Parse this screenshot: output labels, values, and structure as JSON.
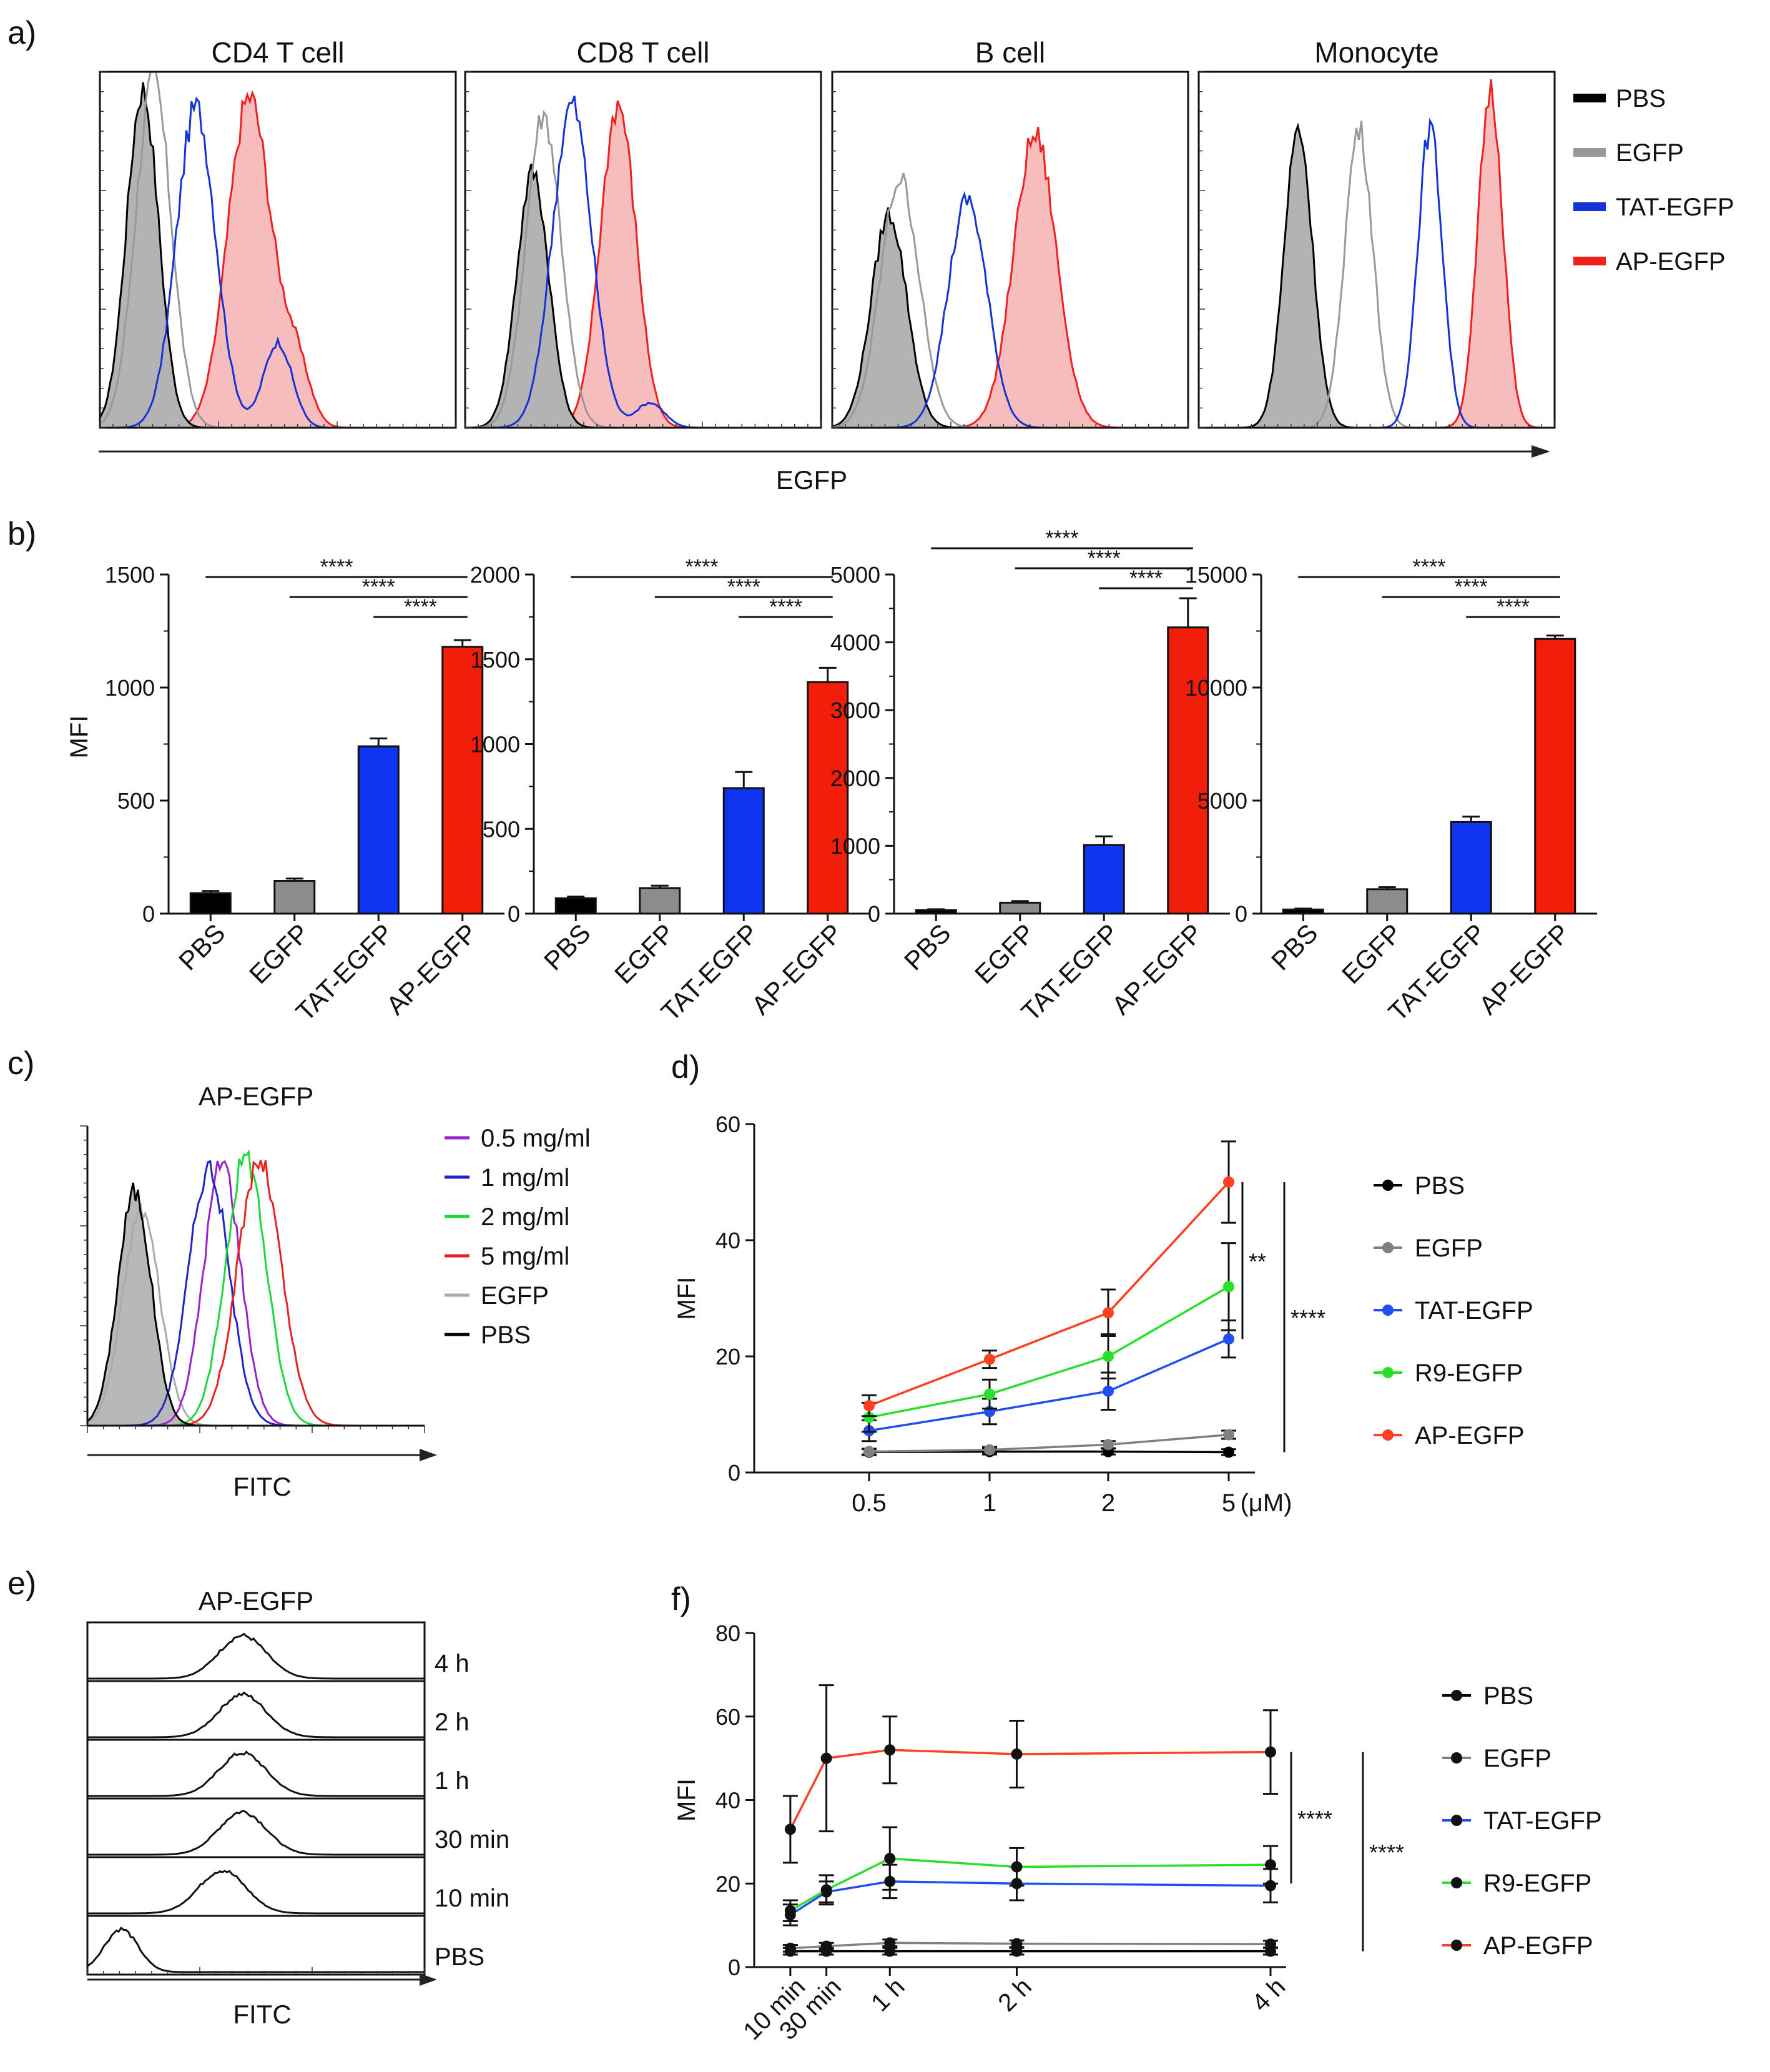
{
  "panels": {
    "a": {
      "label": "a)",
      "xlabel": "EGFP",
      "subplot_titles": [
        "CD4 T cell",
        "CD8 T cell",
        "B cell",
        "Monocyte"
      ],
      "legend": [
        {
          "name": "PBS",
          "color": "#000000"
        },
        {
          "name": "EGFP",
          "color": "#999999"
        },
        {
          "name": "TAT-EGFP",
          "color": "#1433d6"
        },
        {
          "name": "AP-EGFP",
          "color": "#f02020"
        }
      ]
    },
    "b": {
      "label": "b)",
      "ylabel": "MFI"
    },
    "c": {
      "label": "c)",
      "title": "AP-EGFP",
      "xlabel": "FITC",
      "legend": [
        {
          "name": "0.5 mg/ml",
          "color": "#9b22c8"
        },
        {
          "name": "1 mg/ml",
          "color": "#2323c8"
        },
        {
          "name": "2 mg/ml",
          "color": "#1ed73c"
        },
        {
          "name": "5 mg/ml",
          "color": "#e82222"
        },
        {
          "name": "EGFP",
          "color": "#aaaaaa"
        },
        {
          "name": "PBS",
          "color": "#000000"
        }
      ]
    },
    "d": {
      "label": "d)"
    },
    "e": {
      "label": "e)",
      "title": "AP-EGFP",
      "xlabel": "FITC",
      "rows": [
        "4 h",
        "2 h",
        "1 h",
        "30 min",
        "10 min",
        "PBS"
      ]
    },
    "f": {
      "label": "f)"
    }
  },
  "chart_data": [
    {
      "panel": "a",
      "type": "histogram",
      "title": "CD4 T cell",
      "xlabel": "EGFP",
      "series": [
        {
          "name": "PBS",
          "peak": 0.12,
          "width": 0.045,
          "height": 0.95
        },
        {
          "name": "EGFP",
          "peak": 0.15,
          "width": 0.05,
          "height": 0.98
        },
        {
          "name": "TAT-EGFP",
          "peak": 0.27,
          "width": 0.055,
          "height": 0.9,
          "shoulder": [
            0.5,
            0.04,
            0.24
          ]
        },
        {
          "name": "AP-EGFP",
          "peak": 0.42,
          "width": 0.06,
          "height": 0.93,
          "shoulder": [
            0.55,
            0.04,
            0.18
          ]
        }
      ]
    },
    {
      "panel": "a",
      "type": "histogram",
      "title": "CD8 T cell",
      "xlabel": "EGFP",
      "series": [
        {
          "name": "PBS",
          "peak": 0.19,
          "width": 0.045,
          "height": 0.72
        },
        {
          "name": "EGFP",
          "peak": 0.22,
          "width": 0.05,
          "height": 0.88
        },
        {
          "name": "TAT-EGFP",
          "peak": 0.3,
          "width": 0.055,
          "height": 0.91,
          "shoulder": [
            0.52,
            0.04,
            0.07
          ]
        },
        {
          "name": "AP-EGFP",
          "peak": 0.43,
          "width": 0.05,
          "height": 0.91
        }
      ]
    },
    {
      "panel": "a",
      "type": "histogram",
      "title": "B cell",
      "xlabel": "EGFP",
      "series": [
        {
          "name": "PBS",
          "peak": 0.16,
          "width": 0.05,
          "height": 0.6
        },
        {
          "name": "EGFP",
          "peak": 0.19,
          "width": 0.055,
          "height": 0.7
        },
        {
          "name": "TAT-EGFP",
          "peak": 0.38,
          "width": 0.055,
          "height": 0.64
        },
        {
          "name": "AP-EGFP",
          "peak": 0.57,
          "width": 0.06,
          "height": 0.82
        }
      ]
    },
    {
      "panel": "a",
      "type": "histogram",
      "title": "Monocyte",
      "xlabel": "EGFP",
      "series": [
        {
          "name": "PBS",
          "peak": 0.28,
          "width": 0.04,
          "height": 0.84
        },
        {
          "name": "EGFP",
          "peak": 0.45,
          "width": 0.04,
          "height": 0.84
        },
        {
          "name": "TAT-EGFP",
          "peak": 0.65,
          "width": 0.035,
          "height": 0.84
        },
        {
          "name": "AP-EGFP",
          "peak": 0.82,
          "width": 0.035,
          "height": 0.95
        }
      ]
    },
    {
      "panel": "b",
      "type": "bar",
      "ylabel": "MFI",
      "categories": [
        "PBS",
        "EGFP",
        "TAT-EGFP",
        "AP-EGFP"
      ],
      "colors": [
        "#000000",
        "#8c8c8c",
        "#1035f0",
        "#f21e0a"
      ],
      "values": [
        90,
        145,
        740,
        1180
      ],
      "errors": [
        10,
        10,
        35,
        30
      ],
      "ylim": [
        0,
        1500
      ],
      "yticks": [
        0,
        500,
        1000,
        1500
      ],
      "significance": [
        {
          "from": 0,
          "to": 3,
          "label": "****"
        },
        {
          "from": 1,
          "to": 3,
          "label": "****"
        },
        {
          "from": 2,
          "to": 3,
          "label": "****"
        }
      ]
    },
    {
      "panel": "b",
      "type": "bar",
      "ylabel": "",
      "categories": [
        "PBS",
        "EGFP",
        "TAT-EGFP",
        "AP-EGFP"
      ],
      "colors": [
        "#000000",
        "#8c8c8c",
        "#1035f0",
        "#f21e0a"
      ],
      "values": [
        90,
        150,
        740,
        1365
      ],
      "errors": [
        10,
        15,
        95,
        85
      ],
      "ylim": [
        0,
        2000
      ],
      "yticks": [
        0,
        500,
        1000,
        1500,
        2000
      ],
      "significance": [
        {
          "from": 0,
          "to": 3,
          "label": "****"
        },
        {
          "from": 1,
          "to": 3,
          "label": "****"
        },
        {
          "from": 2,
          "to": 3,
          "label": "****"
        }
      ]
    },
    {
      "panel": "b",
      "type": "bar",
      "ylabel": "",
      "categories": [
        "PBS",
        "EGFP",
        "TAT-EGFP",
        "AP-EGFP"
      ],
      "colors": [
        "#000000",
        "#8c8c8c",
        "#1035f0",
        "#f21e0a"
      ],
      "values": [
        50,
        160,
        1010,
        4220
      ],
      "errors": [
        15,
        25,
        130,
        430
      ],
      "ylim": [
        0,
        5000
      ],
      "yticks": [
        0,
        1000,
        2000,
        3000,
        4000,
        5000
      ],
      "significance": [
        {
          "from": 0,
          "to": 3,
          "label": "****"
        },
        {
          "from": 1,
          "to": 3,
          "label": "****"
        },
        {
          "from": 2,
          "to": 3,
          "label": "****"
        }
      ]
    },
    {
      "panel": "b",
      "type": "bar",
      "ylabel": "",
      "categories": [
        "PBS",
        "EGFP",
        "TAT-EGFP",
        "AP-EGFP"
      ],
      "colors": [
        "#000000",
        "#8c8c8c",
        "#1035f0",
        "#f21e0a"
      ],
      "values": [
        180,
        1080,
        4050,
        12150
      ],
      "errors": [
        40,
        90,
        240,
        150
      ],
      "ylim": [
        0,
        15000
      ],
      "yticks": [
        0,
        5000,
        10000,
        15000
      ],
      "significance": [
        {
          "from": 0,
          "to": 3,
          "label": "****"
        },
        {
          "from": 1,
          "to": 3,
          "label": "****"
        },
        {
          "from": 2,
          "to": 3,
          "label": "****"
        }
      ]
    },
    {
      "panel": "c",
      "type": "histogram",
      "title": "AP-EGFP",
      "xlabel": "FITC",
      "series": [
        {
          "name": "PBS",
          "peak": 0.14,
          "width": 0.05,
          "height": 0.78,
          "fill": true
        },
        {
          "name": "EGFP",
          "peak": 0.16,
          "width": 0.055,
          "height": 0.72
        },
        {
          "name": "0.5 mg/ml",
          "peak": 0.4,
          "width": 0.055,
          "height": 0.88
        },
        {
          "name": "1 mg/ml",
          "peak": 0.36,
          "width": 0.06,
          "height": 0.86
        },
        {
          "name": "2 mg/ml",
          "peak": 0.47,
          "width": 0.06,
          "height": 0.9
        },
        {
          "name": "5 mg/ml",
          "peak": 0.51,
          "width": 0.065,
          "height": 0.88
        }
      ]
    },
    {
      "panel": "d",
      "type": "line",
      "xlabel": "(μM)",
      "ylabel": "MFI",
      "x": [
        "0.5",
        "1",
        "2",
        "5"
      ],
      "ylim": [
        0,
        60
      ],
      "yticks": [
        0,
        20,
        40,
        60
      ],
      "series": [
        {
          "name": "PBS",
          "color": "#000000",
          "values": [
            3.5,
            3.6,
            3.6,
            3.5
          ],
          "errors": [
            0.5,
            0.5,
            0.5,
            0.5
          ]
        },
        {
          "name": "EGFP",
          "color": "#808080",
          "values": [
            3.6,
            3.9,
            4.8,
            6.5
          ],
          "errors": [
            0.5,
            0.5,
            0.6,
            0.7
          ]
        },
        {
          "name": "TAT-EGFP",
          "color": "#1f4ff0",
          "values": [
            7.2,
            10.5,
            14,
            23
          ],
          "errors": [
            1.8,
            2.2,
            3.2,
            3.2
          ]
        },
        {
          "name": "R9-EGFP",
          "color": "#28e028",
          "values": [
            9.5,
            13.5,
            20,
            32
          ],
          "errors": [
            2.5,
            2.5,
            3.8,
            7.5
          ]
        },
        {
          "name": "AP-EGFP",
          "color": "#ff4020",
          "values": [
            11.5,
            19.5,
            27.5,
            50
          ],
          "errors": [
            1.8,
            1.5,
            4,
            7
          ]
        }
      ],
      "significance": [
        {
          "label": "**",
          "y1": 23,
          "y2": 50
        },
        {
          "label": "****",
          "y1": 3.5,
          "y2": 50
        }
      ]
    },
    {
      "panel": "e",
      "type": "histogram",
      "title": "AP-EGFP",
      "xlabel": "FITC",
      "series": [
        {
          "name": "4 h",
          "peak": 0.46,
          "width": 0.07,
          "height": 0.8
        },
        {
          "name": "2 h",
          "peak": 0.46,
          "width": 0.07,
          "height": 0.8
        },
        {
          "name": "1 h",
          "peak": 0.46,
          "width": 0.07,
          "height": 0.8
        },
        {
          "name": "30 min",
          "peak": 0.46,
          "width": 0.07,
          "height": 0.8
        },
        {
          "name": "10 min",
          "peak": 0.4,
          "width": 0.07,
          "height": 0.8
        },
        {
          "name": "PBS",
          "peak": 0.1,
          "width": 0.05,
          "height": 0.8
        }
      ]
    },
    {
      "panel": "f",
      "type": "line",
      "ylabel": "MFI",
      "x": [
        "10 min",
        "30 min",
        "1 h",
        "2 h",
        "4 h"
      ],
      "x_minutes": [
        10,
        30,
        60,
        120,
        240
      ],
      "ylim": [
        0,
        80
      ],
      "yticks": [
        0,
        20,
        40,
        60,
        80
      ],
      "series": [
        {
          "name": "PBS",
          "color": "#000000",
          "values": [
            3.8,
            3.8,
            3.8,
            3.8,
            3.8
          ],
          "errors": [
            0.8,
            0.8,
            0.8,
            0.8,
            0.8
          ]
        },
        {
          "name": "EGFP",
          "color": "#808080",
          "values": [
            4.5,
            5,
            5.8,
            5.6,
            5.5
          ],
          "errors": [
            0.8,
            0.8,
            0.8,
            0.8,
            0.8
          ]
        },
        {
          "name": "TAT-EGFP",
          "color": "#1f4ff0",
          "values": [
            12.5,
            18,
            20.5,
            20,
            19.5
          ],
          "errors": [
            2.5,
            2.5,
            4,
            4,
            4
          ]
        },
        {
          "name": "R9-EGFP",
          "color": "#28e028",
          "values": [
            13.5,
            18.5,
            26,
            24,
            24.5
          ],
          "errors": [
            2.5,
            3.5,
            7.5,
            4.5,
            4.5
          ]
        },
        {
          "name": "AP-EGFP",
          "color": "#ff4020",
          "values": [
            33,
            50,
            52,
            51,
            51.5
          ],
          "errors": [
            8,
            17.5,
            8,
            8,
            10
          ]
        }
      ],
      "significance": [
        {
          "label": "****",
          "y1": 20,
          "y2": 51.5
        },
        {
          "label": "****",
          "y1": 3.8,
          "y2": 51.5
        }
      ]
    }
  ]
}
